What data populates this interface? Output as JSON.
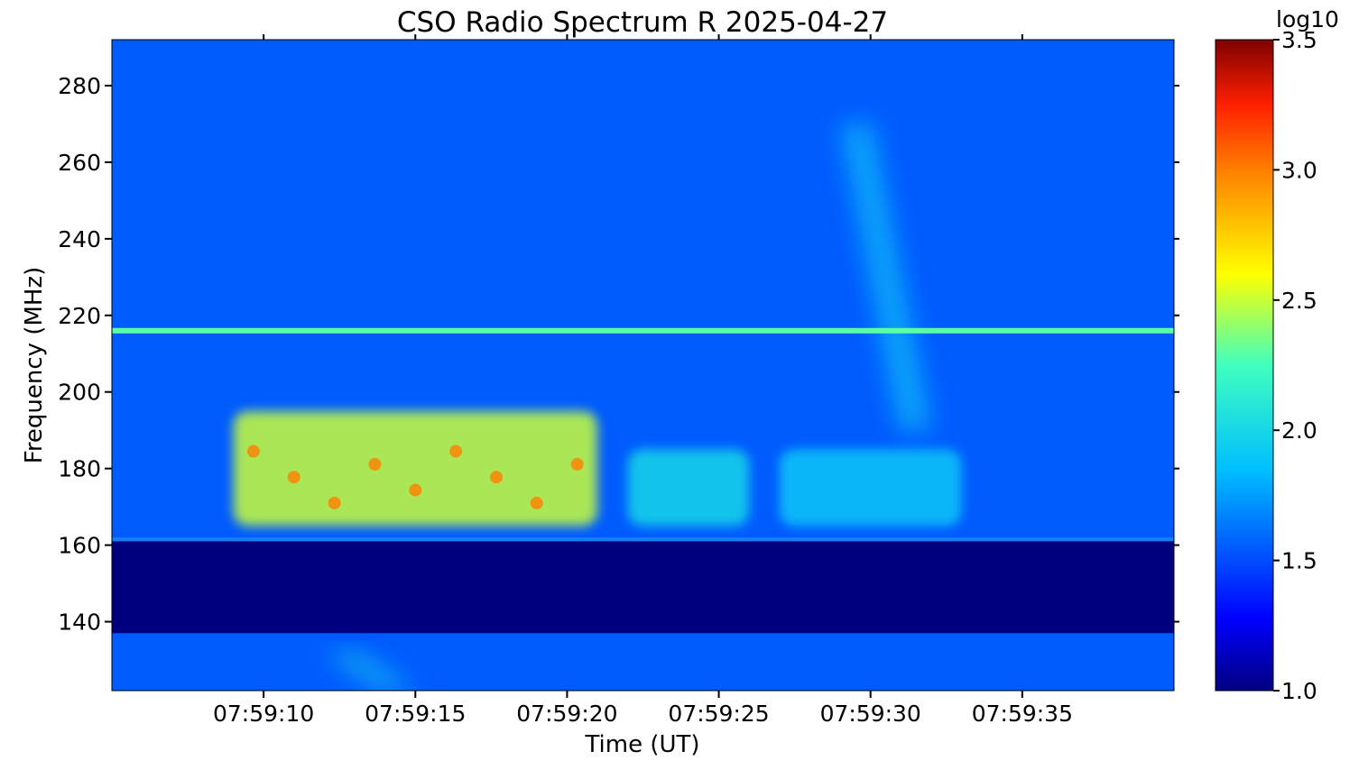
{
  "chart_data": {
    "type": "heatmap",
    "title": "CSO Radio Spectrum R 2025-04-27",
    "xlabel": "Time (UT)",
    "ylabel": "Frequency (MHz)",
    "x_tick_labels": [
      "07:59:10",
      "07:59:15",
      "07:59:20",
      "07:59:25",
      "07:59:30",
      "07:59:35"
    ],
    "y_ticks": [
      140,
      160,
      180,
      200,
      220,
      240,
      260,
      280
    ],
    "ylim": [
      122,
      292
    ],
    "xlim": [
      "07:59:05",
      "07:59:40"
    ],
    "colorbar": {
      "label": "log10",
      "ticks": [
        1.0,
        1.5,
        2.0,
        2.5,
        3.0,
        3.5
      ],
      "tick_labels": [
        "1.0",
        "1.5",
        "2.0",
        "2.5",
        "3.0",
        "3.5"
      ],
      "range": [
        1.0,
        3.5
      ],
      "colormap": "jet"
    },
    "features": [
      {
        "kind": "background",
        "freq_range": [
          162,
          292
        ],
        "level": 1.55
      },
      {
        "kind": "background",
        "freq_range": [
          122,
          137
        ],
        "level": 1.55
      },
      {
        "kind": "low-band gap",
        "freq_range": [
          137,
          161
        ],
        "level": 1.0
      },
      {
        "kind": "interference line",
        "freq": 216,
        "level": 2.3
      },
      {
        "kind": "burst cluster",
        "time_range": [
          "07:59:09",
          "07:59:21"
        ],
        "freq_range": [
          165,
          195
        ],
        "level": 2.5,
        "peak": 3.0
      },
      {
        "kind": "burst cluster",
        "time_range": [
          "07:59:22",
          "07:59:26"
        ],
        "freq_range": [
          165,
          185
        ],
        "level": 2.0
      },
      {
        "kind": "burst cluster",
        "time_range": [
          "07:59:27",
          "07:59:33"
        ],
        "freq_range": [
          165,
          185
        ],
        "level": 1.9
      },
      {
        "kind": "drifting feature",
        "time_range": [
          "07:59:29",
          "07:59:32"
        ],
        "freq_range": [
          190,
          270
        ],
        "level": 1.9
      },
      {
        "kind": "drifting feature",
        "time_range": [
          "07:59:12",
          "07:59:15"
        ],
        "freq_range": [
          122,
          132
        ],
        "level": 2.0
      }
    ]
  }
}
